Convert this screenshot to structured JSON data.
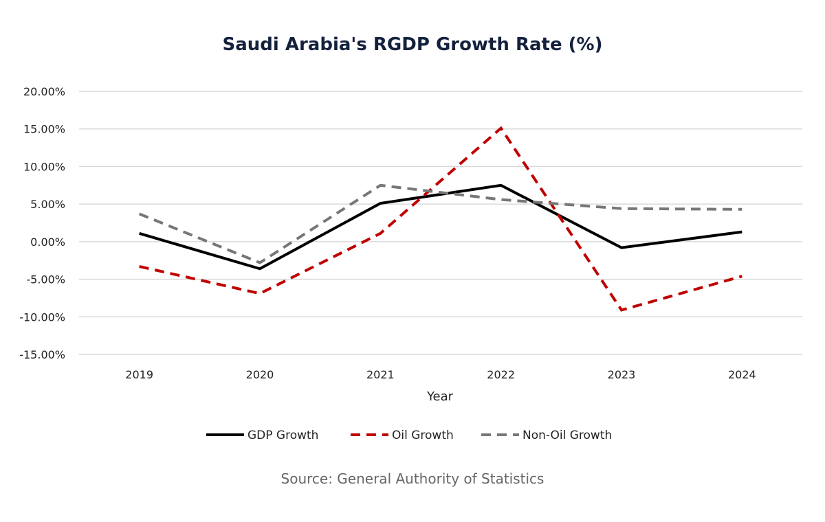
{
  "chart_data": {
    "type": "line",
    "title": "Saudi Arabia's RGDP Growth Rate (%)",
    "xlabel": "Year",
    "ylabel": "",
    "categories": [
      "2019",
      "2020",
      "2021",
      "2022",
      "2023",
      "2024"
    ],
    "ylim": [
      -15,
      20
    ],
    "yticks": [
      20,
      15,
      10,
      5,
      0,
      -5,
      -10,
      -15
    ],
    "ytick_labels": [
      "20.00%",
      "15.00%",
      "10.00%",
      "5.00%",
      "0.00%",
      "-5.00%",
      "-10.00%",
      "-15.00%"
    ],
    "grid": true,
    "legend_position": "bottom",
    "series": [
      {
        "name": "GDP Growth",
        "values": [
          1.1,
          -3.6,
          5.1,
          7.5,
          -0.8,
          1.3
        ],
        "color": "#000000",
        "style": "solid"
      },
      {
        "name": "Oil Growth",
        "values": [
          -3.3,
          -6.9,
          1.1,
          15.1,
          -9.1,
          -4.6
        ],
        "color": "#c00000",
        "style": "dashed"
      },
      {
        "name": "Non-Oil Growth",
        "values": [
          3.7,
          -2.8,
          7.5,
          5.6,
          4.4,
          4.3
        ],
        "color": "#777777",
        "style": "dashed"
      }
    ],
    "source": "Source: General Authority of Statistics"
  }
}
